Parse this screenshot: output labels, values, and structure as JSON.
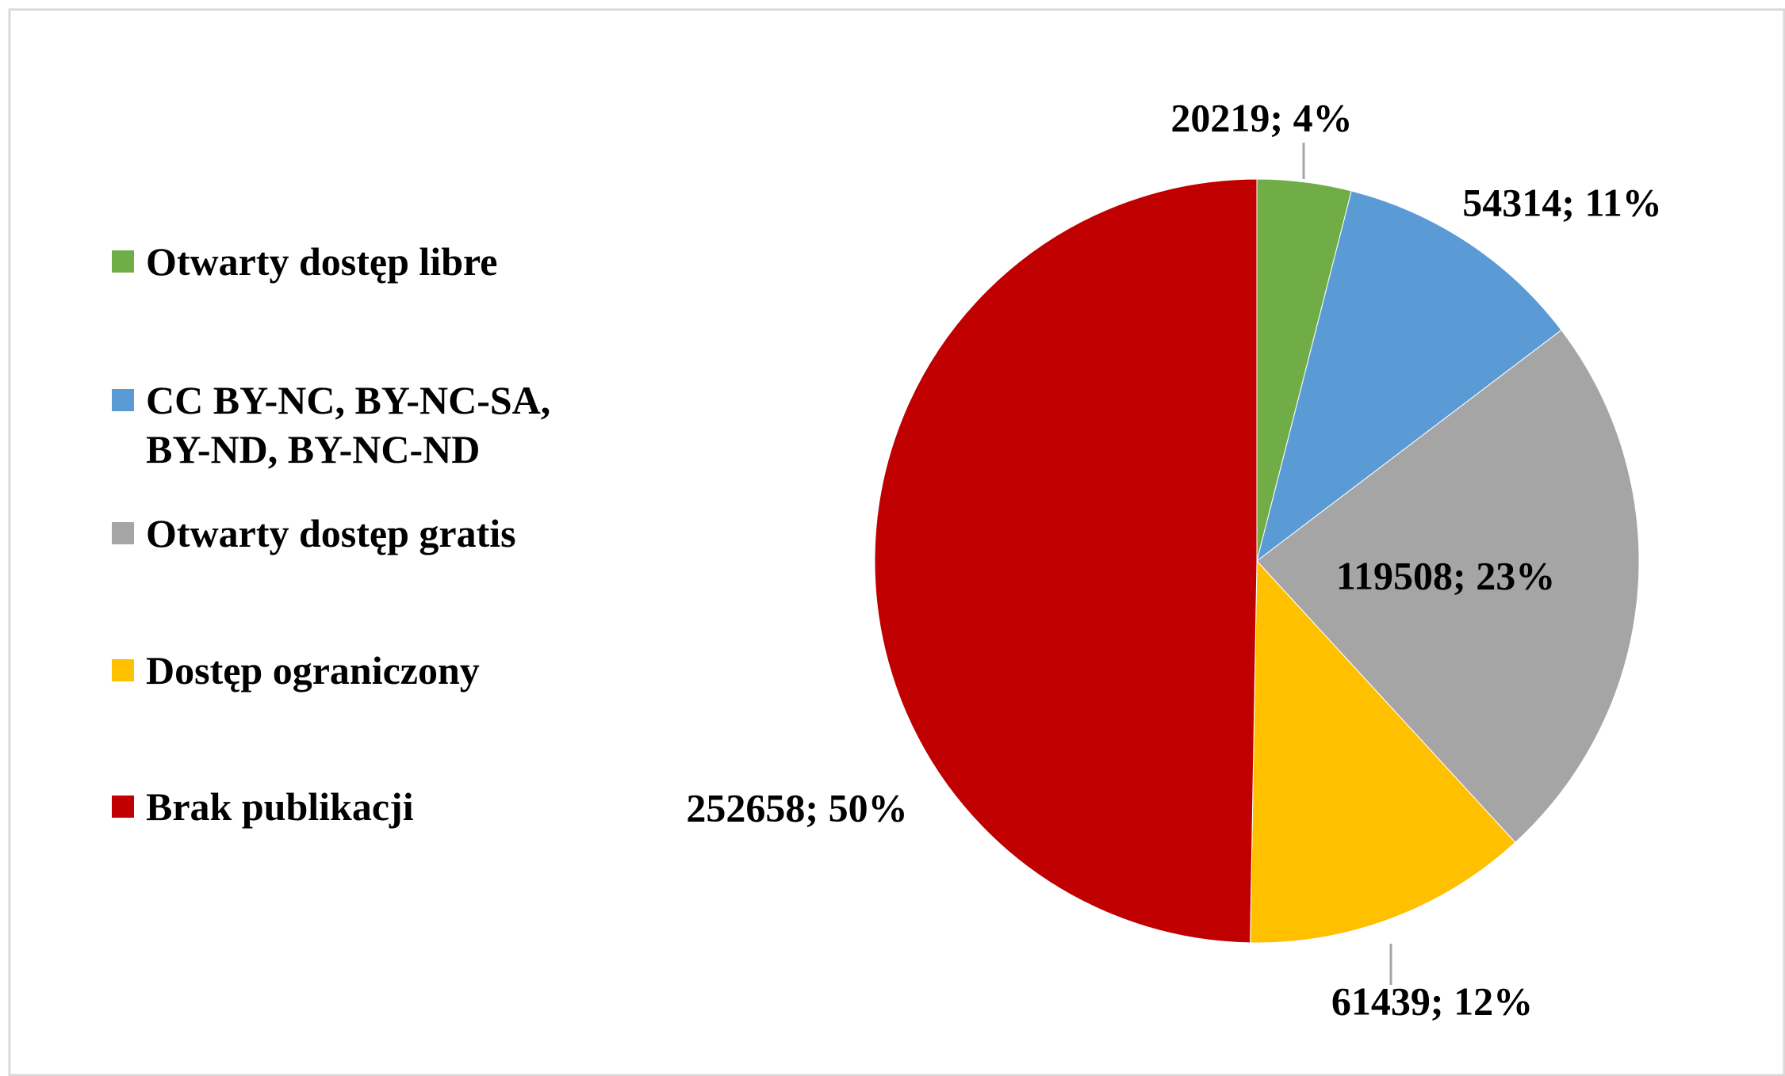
{
  "chart_data": {
    "type": "pie",
    "categories": [
      "Otwarty dostęp libre",
      "CC BY-NC, BY-NC-SA, BY-ND, BY-NC-ND",
      "Otwarty dostęp gratis",
      "Dostęp ograniczony",
      "Brak publikacji"
    ],
    "values": [
      20219,
      54314,
      119508,
      61439,
      252658
    ],
    "value_labels": [
      "20219; 4%",
      "54314; 11%",
      "119508; 23%",
      "61439; 12%",
      "252658; 50%"
    ],
    "colors": [
      "#70ad47",
      "#5b9bd5",
      "#a5a5a5",
      "#ffc000",
      "#c00000"
    ],
    "legend": "left"
  }
}
